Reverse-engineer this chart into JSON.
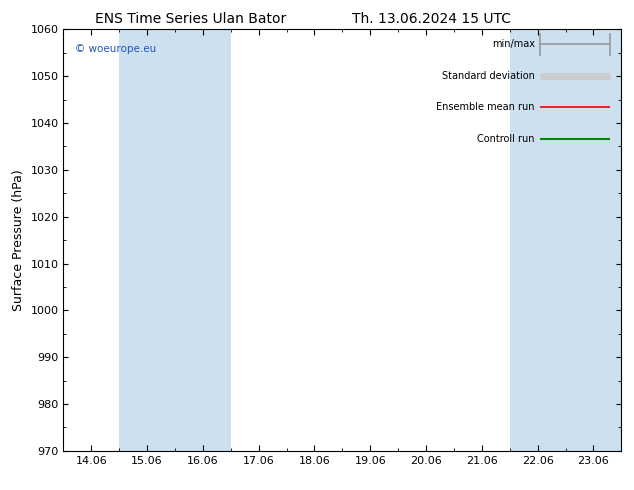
{
  "title_left": "ENS Time Series Ulan Bator",
  "title_right": "Th. 13.06.2024 15 UTC",
  "ylabel": "Surface Pressure (hPa)",
  "ylim": [
    970,
    1060
  ],
  "yticks": [
    970,
    980,
    990,
    1000,
    1010,
    1020,
    1030,
    1040,
    1050,
    1060
  ],
  "xtick_labels": [
    "14.06",
    "15.06",
    "16.06",
    "17.06",
    "18.06",
    "19.06",
    "20.06",
    "21.06",
    "22.06",
    "23.06"
  ],
  "xtick_positions": [
    0,
    1,
    2,
    3,
    4,
    5,
    6,
    7,
    8,
    9
  ],
  "xlim": [
    -0.5,
    9.5
  ],
  "copyright_text": "© woeurope.eu",
  "blue_bands": [
    {
      "xmin": 0.5,
      "xmax": 2.5
    },
    {
      "xmin": 7.5,
      "xmax": 9.5
    }
  ],
  "band_color": "#cce0f0",
  "bg_color": "#ffffff",
  "title_fontsize": 10,
  "axis_label_fontsize": 9,
  "tick_fontsize": 8,
  "copyright_color": "#2255bb",
  "legend_items": [
    {
      "label": "min/max",
      "color": "#999999",
      "lw": 1.2,
      "style": "minmax"
    },
    {
      "label": "Standard deviation",
      "color": "#cccccc",
      "lw": 5.0,
      "style": "solid"
    },
    {
      "label": "Ensemble mean run",
      "color": "#ee0000",
      "lw": 1.2,
      "style": "solid"
    },
    {
      "label": "Controll run",
      "color": "#008800",
      "lw": 1.5,
      "style": "solid"
    }
  ]
}
